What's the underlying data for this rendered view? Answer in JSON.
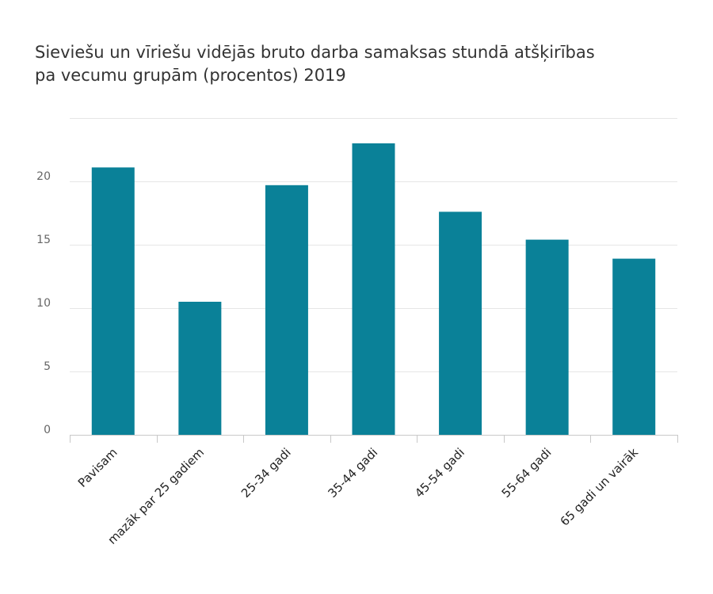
{
  "chart_data": {
    "type": "bar",
    "title": "Sieviešu un vīriešu vidējās bruto darba samaksas stundā atšķirības pa vecumu grupām (procentos) 2019",
    "categories": [
      "Pavisam",
      "mazāk par 25 gadiem",
      "25-34 gadi",
      "35-44 gadi",
      "45-54 gadi",
      "55-64 gadi",
      "65 gadi un vairāk"
    ],
    "values": [
      21.1,
      10.5,
      19.7,
      23.0,
      17.6,
      15.4,
      13.9
    ],
    "ylim": [
      0,
      25
    ],
    "yticks": [
      0,
      5,
      10,
      15,
      20
    ],
    "xlabel": "",
    "ylabel": "",
    "grid": true,
    "bar_color": "#0a8198",
    "grid_color": "#e6e6e6",
    "axis_color": "#c8c8c8"
  }
}
